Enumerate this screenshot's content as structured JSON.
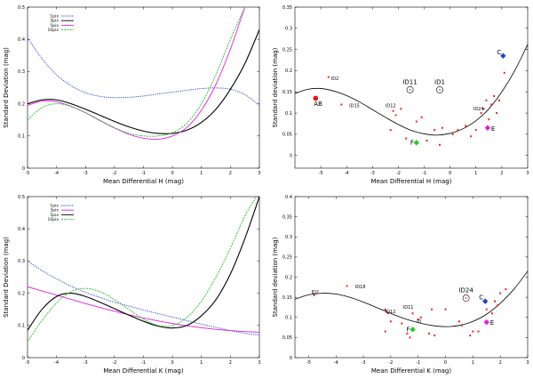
{
  "chart_data": [
    {
      "type": "line",
      "panel": "top-left",
      "xlabel": "Mean Differential H (mag)",
      "ylabel": "Standard Deviation (mag)",
      "xlim": [
        -5,
        3
      ],
      "ylim": [
        0,
        0.5
      ],
      "xticks": [
        "-5",
        "-4",
        "-3",
        "-2",
        "-1",
        "0",
        "1",
        "2",
        "3"
      ],
      "yticks": [
        "0",
        "0.1",
        "0.2",
        "0.3",
        "0.4",
        "0.5"
      ],
      "legend_position": "top-left",
      "series": [
        {
          "name": "1pix",
          "color": "#2233cc",
          "dash": "1.2,1.2",
          "x": [
            -5,
            -4.5,
            -4,
            -3.5,
            -3,
            -2.5,
            -2,
            -1.5,
            -1,
            -0.5,
            0,
            0.5,
            1,
            1.5,
            2,
            2.5,
            3
          ],
          "y": [
            0.405,
            0.34,
            0.29,
            0.256,
            0.234,
            0.223,
            0.219,
            0.22,
            0.224,
            0.23,
            0.236,
            0.242,
            0.247,
            0.249,
            0.245,
            0.228,
            0.195
          ]
        },
        {
          "name": "3pix",
          "color": "#000000",
          "dash": "",
          "x": [
            -5,
            -4.5,
            -4,
            -3.5,
            -3,
            -2.5,
            -2,
            -1.5,
            -1,
            -0.5,
            0,
            0.5,
            1,
            1.5,
            2,
            2.5,
            3
          ],
          "y": [
            0.2,
            0.212,
            0.212,
            0.2,
            0.183,
            0.164,
            0.145,
            0.128,
            0.115,
            0.108,
            0.108,
            0.118,
            0.142,
            0.183,
            0.245,
            0.325,
            0.43
          ]
        },
        {
          "name": "5pix",
          "color": "#dd22dd",
          "dash": "",
          "x": [
            -5,
            -4.5,
            -4,
            -3.5,
            -3,
            -2.5,
            -2,
            -1.5,
            -1,
            -0.5,
            0,
            0.5,
            1,
            1.5,
            2,
            2.5
          ],
          "y": [
            0.195,
            0.208,
            0.206,
            0.192,
            0.172,
            0.148,
            0.125,
            0.105,
            0.093,
            0.09,
            0.1,
            0.127,
            0.18,
            0.26,
            0.37,
            0.5
          ]
        },
        {
          "name": "10pix",
          "color": "#22bb22",
          "dash": "2,1.2",
          "x": [
            -5,
            -4.5,
            -4,
            -3.5,
            -3,
            -2.5,
            -2,
            -1.5,
            -1,
            -0.5,
            0,
            0.5,
            1,
            1.5,
            2,
            2.5
          ],
          "y": [
            0.15,
            0.188,
            0.2,
            0.192,
            0.172,
            0.148,
            0.125,
            0.108,
            0.1,
            0.1,
            0.11,
            0.14,
            0.2,
            0.29,
            0.4,
            0.5
          ]
        }
      ]
    },
    {
      "type": "scatter",
      "panel": "top-right",
      "xlabel": "Mean Differential H (mag)",
      "ylabel": "Standard deviation (mag)",
      "xlim": [
        -6,
        3
      ],
      "ylim": [
        -0.03,
        0.35
      ],
      "xticks": [
        "-5",
        "-4",
        "-3",
        "-2",
        "-1",
        "0",
        "1",
        "2",
        "3"
      ],
      "yticks": [
        "0",
        "0.05",
        "0.1",
        "0.15",
        "0.2",
        "0.25",
        "0.3",
        "0.35"
      ],
      "fit": {
        "color": "#000000",
        "x": [
          -6,
          -5.5,
          -5,
          -4.5,
          -4,
          -3.5,
          -3,
          -2.5,
          -2,
          -1.5,
          -1,
          -0.5,
          0,
          0.5,
          1,
          1.5,
          2,
          2.5,
          3
        ],
        "y": [
          0.146,
          0.156,
          0.158,
          0.152,
          0.141,
          0.126,
          0.108,
          0.09,
          0.073,
          0.059,
          0.051,
          0.048,
          0.052,
          0.063,
          0.082,
          0.11,
          0.15,
          0.2,
          0.262
        ]
      },
      "points": {
        "color": "#ee2222",
        "x": [
          -4.7,
          -4.2,
          -2.2,
          -2.1,
          -2.3,
          -1.9,
          -1.7,
          -1.3,
          -1.1,
          -0.9,
          -0.6,
          -0.4,
          -0.3,
          0.1,
          0.3,
          0.6,
          0.8,
          1.0,
          1.2,
          1.3,
          1.4,
          1.5,
          1.6,
          1.7,
          1.8,
          1.9,
          2.1
        ],
        "y": [
          0.185,
          0.12,
          0.105,
          0.095,
          0.06,
          0.11,
          0.04,
          0.08,
          0.09,
          0.035,
          0.06,
          0.025,
          0.065,
          0.05,
          0.06,
          0.07,
          0.045,
          0.06,
          0.1,
          0.11,
          0.13,
          0.085,
          0.12,
          0.14,
          0.1,
          0.13,
          0.195
        ]
      },
      "markers": [
        {
          "label": "AB",
          "x": -5.2,
          "y": 0.135,
          "color": "#ee1111",
          "shape": "circle"
        },
        {
          "label": "C",
          "x": 2.05,
          "y": 0.235,
          "color": "#2244cc",
          "shape": "diamond"
        },
        {
          "label": "E",
          "x": 1.45,
          "y": 0.065,
          "color": "#dd22dd",
          "shape": "diamond"
        },
        {
          "label": "F",
          "x": -1.3,
          "y": 0.03,
          "color": "#22cc22",
          "shape": "diamond"
        }
      ],
      "circled": [
        {
          "label": "ID11",
          "x": -1.55,
          "y": 0.155
        },
        {
          "label": "ID1",
          "x": -0.4,
          "y": 0.155
        }
      ],
      "labels": [
        {
          "text": "ID2",
          "x": -4.6,
          "y": 0.182
        },
        {
          "text": "ID15",
          "x": -3.9,
          "y": 0.118
        },
        {
          "text": "ID12",
          "x": -2.5,
          "y": 0.118
        },
        {
          "text": "ID24",
          "x": 0.9,
          "y": 0.11
        }
      ]
    },
    {
      "type": "line",
      "panel": "bottom-left",
      "xlabel": "Mean Differential K (mag)",
      "ylabel": "Standard Deviation (mag)",
      "xlim": [
        -5,
        3
      ],
      "ylim": [
        0,
        0.5
      ],
      "xticks": [
        "-5",
        "-4",
        "-3",
        "-2",
        "-1",
        "0",
        "1",
        "2",
        "3"
      ],
      "yticks": [
        "0",
        "0.1",
        "0.2",
        "0.3",
        "0.4",
        "0.5"
      ],
      "legend_position": "top-left",
      "series": [
        {
          "name": "1pix",
          "color": "#2233cc",
          "dash": "1.2,1.2",
          "x": [
            -5,
            -4.5,
            -4,
            -3.5,
            -3,
            -2.5,
            -2,
            -1.5,
            -1,
            -0.5,
            0,
            0.5,
            1,
            1.5,
            2,
            2.5,
            3
          ],
          "y": [
            0.3,
            0.27,
            0.245,
            0.222,
            0.203,
            0.187,
            0.172,
            0.16,
            0.148,
            0.137,
            0.126,
            0.115,
            0.104,
            0.094,
            0.084,
            0.076,
            0.07
          ]
        },
        {
          "name": "3pix",
          "color": "#dd22dd",
          "dash": "",
          "x": [
            -5,
            -4.5,
            -4,
            -3.5,
            -3,
            -2.5,
            -2,
            -1.5,
            -1,
            -0.5,
            0,
            0.5,
            1,
            1.5,
            2,
            2.5,
            3
          ],
          "y": [
            0.22,
            0.207,
            0.194,
            0.181,
            0.168,
            0.156,
            0.144,
            0.133,
            0.123,
            0.114,
            0.106,
            0.099,
            0.093,
            0.088,
            0.084,
            0.081,
            0.079
          ]
        },
        {
          "name": "5pix",
          "color": "#000000",
          "dash": "",
          "x": [
            -5,
            -4.5,
            -4,
            -3.5,
            -3,
            -2.5,
            -2,
            -1.5,
            -1,
            -0.5,
            0,
            0.5,
            1,
            1.5,
            2,
            2.5,
            3
          ],
          "y": [
            0.085,
            0.15,
            0.19,
            0.2,
            0.19,
            0.172,
            0.152,
            0.132,
            0.113,
            0.098,
            0.092,
            0.1,
            0.13,
            0.18,
            0.26,
            0.37,
            0.5
          ]
        },
        {
          "name": "10pix",
          "color": "#22bb22",
          "dash": "2,1.2",
          "x": [
            -5,
            -4.5,
            -4,
            -3.5,
            -3,
            -2.5,
            -2,
            -1.5,
            -1,
            -0.5,
            0,
            0.5,
            1,
            1.5,
            2,
            2.5,
            2.9
          ],
          "y": [
            0.05,
            0.115,
            0.17,
            0.205,
            0.215,
            0.205,
            0.18,
            0.15,
            0.12,
            0.1,
            0.1,
            0.125,
            0.175,
            0.25,
            0.34,
            0.44,
            0.5
          ]
        }
      ]
    },
    {
      "type": "scatter",
      "panel": "bottom-right",
      "xlabel": "Mean Differential K (mag)",
      "ylabel": "Standard deviation (mag)",
      "xlim": [
        -5.5,
        3
      ],
      "ylim": [
        0,
        0.4
      ],
      "xticks": [
        "-5",
        "-4",
        "-3",
        "-2",
        "-1",
        "0",
        "1",
        "2",
        "3"
      ],
      "yticks": [
        "0",
        "0.05",
        "0.1",
        "0.15",
        "0.2",
        "0.25",
        "0.3",
        "0.35",
        "0.4"
      ],
      "fit": {
        "color": "#000000",
        "x": [
          -5.5,
          -5,
          -4.5,
          -4,
          -3.5,
          -3,
          -2.5,
          -2,
          -1.5,
          -1,
          -0.5,
          0,
          0.5,
          1,
          1.5,
          2,
          2.5,
          3
        ],
        "y": [
          0.145,
          0.156,
          0.16,
          0.158,
          0.15,
          0.138,
          0.124,
          0.11,
          0.097,
          0.087,
          0.08,
          0.077,
          0.08,
          0.09,
          0.108,
          0.135,
          0.17,
          0.215
        ]
      },
      "points": {
        "color": "#ee2222",
        "x": [
          -4.8,
          -3.6,
          -2.2,
          -2.1,
          -2.0,
          -1.6,
          -1.4,
          -1.3,
          -1.2,
          -1.0,
          -0.9,
          -0.6,
          -0.4,
          0.0,
          0.5,
          0.6,
          0.9,
          1.0,
          1.2,
          1.5,
          1.7,
          1.8,
          1.9,
          2.0,
          2.2,
          -2.2,
          -0.5
        ],
        "y": [
          0.155,
          0.178,
          0.12,
          0.11,
          0.09,
          0.085,
          0.06,
          0.05,
          0.11,
          0.095,
          0.1,
          0.06,
          0.055,
          0.12,
          0.09,
          0.08,
          0.055,
          0.065,
          0.065,
          0.12,
          0.11,
          0.14,
          0.13,
          0.16,
          0.17,
          0.065,
          0.12
        ]
      },
      "markers": [
        {
          "label": "C",
          "x": 1.45,
          "y": 0.14,
          "color": "#2244cc",
          "shape": "diamond"
        },
        {
          "label": "E",
          "x": 1.5,
          "y": 0.088,
          "color": "#dd22dd",
          "shape": "diamond"
        },
        {
          "label": "F",
          "x": -1.2,
          "y": 0.07,
          "color": "#22cc22",
          "shape": "diamond"
        }
      ],
      "circled": [
        {
          "label": "ID24",
          "x": 0.75,
          "y": 0.148
        }
      ],
      "labels": [
        {
          "text": "ID2",
          "x": -4.9,
          "y": 0.163
        },
        {
          "text": "ID18",
          "x": -3.3,
          "y": 0.176
        },
        {
          "text": "ID11",
          "x": -1.55,
          "y": 0.125
        },
        {
          "text": "ID12",
          "x": -2.2,
          "y": 0.115
        },
        {
          "text": "ID",
          "x": -1.05,
          "y": 0.09
        }
      ]
    }
  ]
}
